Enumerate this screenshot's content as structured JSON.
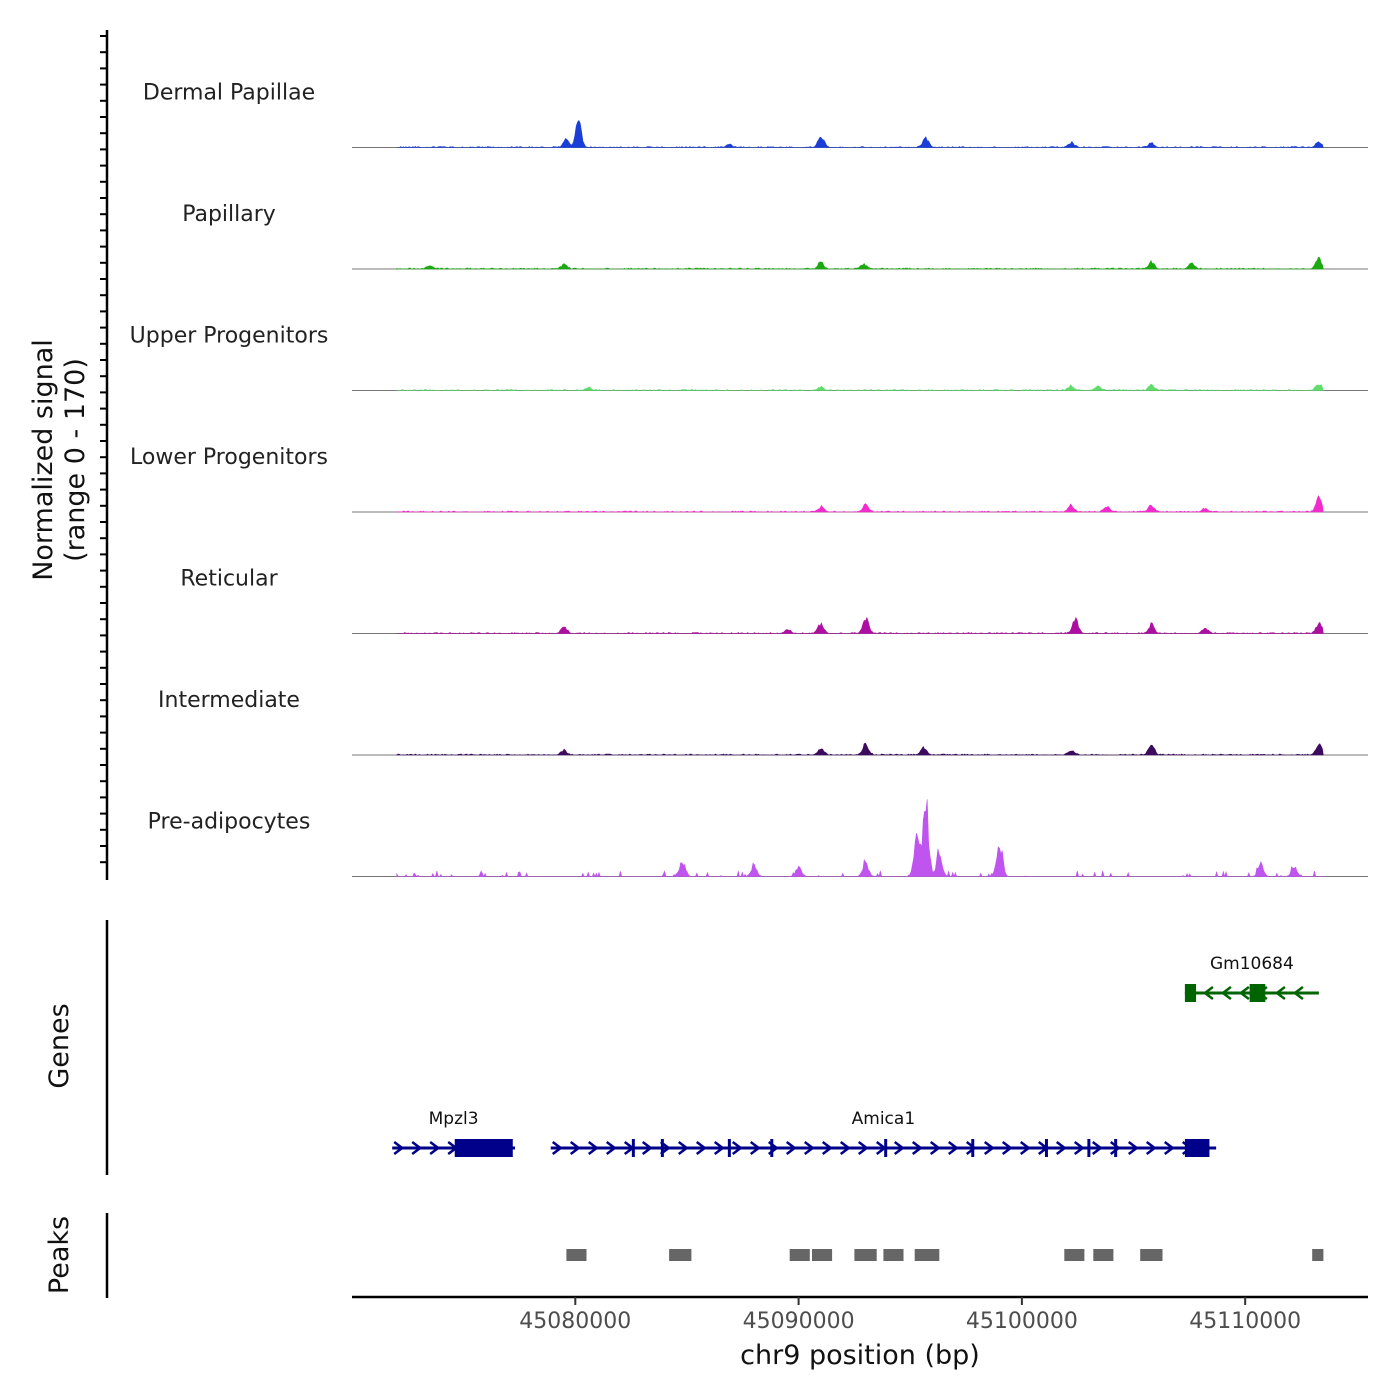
{
  "chart_data": {
    "type": "area",
    "title": "",
    "y_axis_title": [
      "Normalized signal",
      "(range 0 - 170)"
    ],
    "y_range": [
      0,
      170
    ],
    "xlabel": "chr9 position (bp)",
    "xlim": [
      45070000,
      45115500
    ],
    "x_ticks": [
      45080000,
      45090000,
      45100000,
      45110000
    ],
    "x_tick_labels": [
      "45080000",
      "45090000",
      "45100000",
      "45110000"
    ],
    "tracks": [
      {
        "name": "Dermal Papillae",
        "color": "#1b3fd6",
        "peaks": [
          [
            45080150,
            38
          ],
          [
            45091000,
            18
          ],
          [
            45095700,
            14
          ],
          [
            45079600,
            12
          ],
          [
            45102200,
            8
          ],
          [
            45113300,
            9
          ],
          [
            45105800,
            6
          ],
          [
            45086900,
            5
          ]
        ]
      },
      {
        "name": "Papillary",
        "color": "#1aaa10",
        "peaks": [
          [
            45113300,
            16
          ],
          [
            45091000,
            10
          ],
          [
            45105800,
            10
          ],
          [
            45107600,
            8
          ],
          [
            45092900,
            8
          ],
          [
            45079500,
            7
          ],
          [
            45073500,
            5
          ]
        ]
      },
      {
        "name": "Upper Progenitors",
        "color": "#5fdc6a",
        "peaks": [
          [
            45113300,
            11
          ],
          [
            45105800,
            9
          ],
          [
            45102200,
            7
          ],
          [
            45103400,
            6
          ],
          [
            45091000,
            5
          ],
          [
            45080600,
            4
          ]
        ]
      },
      {
        "name": "Lower Progenitors",
        "color": "#f02ccf",
        "peaks": [
          [
            45113300,
            20
          ],
          [
            45105800,
            11
          ],
          [
            45093000,
            11
          ],
          [
            45102200,
            10
          ],
          [
            45103800,
            8
          ],
          [
            45091000,
            8
          ],
          [
            45108200,
            5
          ]
        ]
      },
      {
        "name": "Reticular",
        "color": "#ad0fa0",
        "peaks": [
          [
            45093000,
            24
          ],
          [
            45102400,
            20
          ],
          [
            45113300,
            16
          ],
          [
            45091000,
            15
          ],
          [
            45105800,
            14
          ],
          [
            45079500,
            10
          ],
          [
            45108200,
            8
          ],
          [
            45089500,
            6
          ]
        ]
      },
      {
        "name": "Intermediate",
        "color": "#3d0b5e",
        "peaks": [
          [
            45093000,
            17
          ],
          [
            45113300,
            17
          ],
          [
            45105800,
            14
          ],
          [
            45091000,
            10
          ],
          [
            45095600,
            10
          ],
          [
            45079500,
            7
          ],
          [
            45102200,
            7
          ]
        ]
      },
      {
        "name": "Pre-adipocytes",
        "color": "#bf55ee",
        "peaks": [
          [
            45095700,
            108
          ],
          [
            45095300,
            55
          ],
          [
            45099000,
            52
          ],
          [
            45096300,
            34
          ],
          [
            45084800,
            25
          ],
          [
            45093000,
            20
          ],
          [
            45088000,
            18
          ],
          [
            45090000,
            14
          ],
          [
            45110700,
            16
          ],
          [
            45112200,
            14
          ]
        ]
      }
    ],
    "genes_label": "Genes",
    "genes": [
      {
        "name": "Gm10684",
        "strand": "-",
        "start": 45107300,
        "end": 45113300,
        "color": "#006400",
        "row": 0,
        "exons": [
          [
            45107300,
            45107800
          ],
          [
            45110200,
            45110900
          ]
        ]
      },
      {
        "name": "Mpzl3",
        "strand": "+",
        "start": 45071800,
        "end": 45077300,
        "color": "#00008b",
        "row": 1,
        "exons": [
          [
            45074600,
            45077200
          ]
        ]
      },
      {
        "name": "Amica1",
        "strand": "+",
        "start": 45078900,
        "end": 45108700,
        "color": "#00008b",
        "row": 1,
        "exons": [
          [
            45107300,
            45108400
          ]
        ]
      }
    ],
    "peaks_label": "Peaks",
    "called_peaks": [
      [
        45079600,
        45080500
      ],
      [
        45084200,
        45085200
      ],
      [
        45089600,
        45090500
      ],
      [
        45090600,
        45091500
      ],
      [
        45092500,
        45093500
      ],
      [
        45093800,
        45094700
      ],
      [
        45095200,
        45096300
      ],
      [
        45101900,
        45102800
      ],
      [
        45103200,
        45104100
      ],
      [
        45105300,
        45106300
      ],
      [
        45113000,
        45113500
      ]
    ]
  }
}
